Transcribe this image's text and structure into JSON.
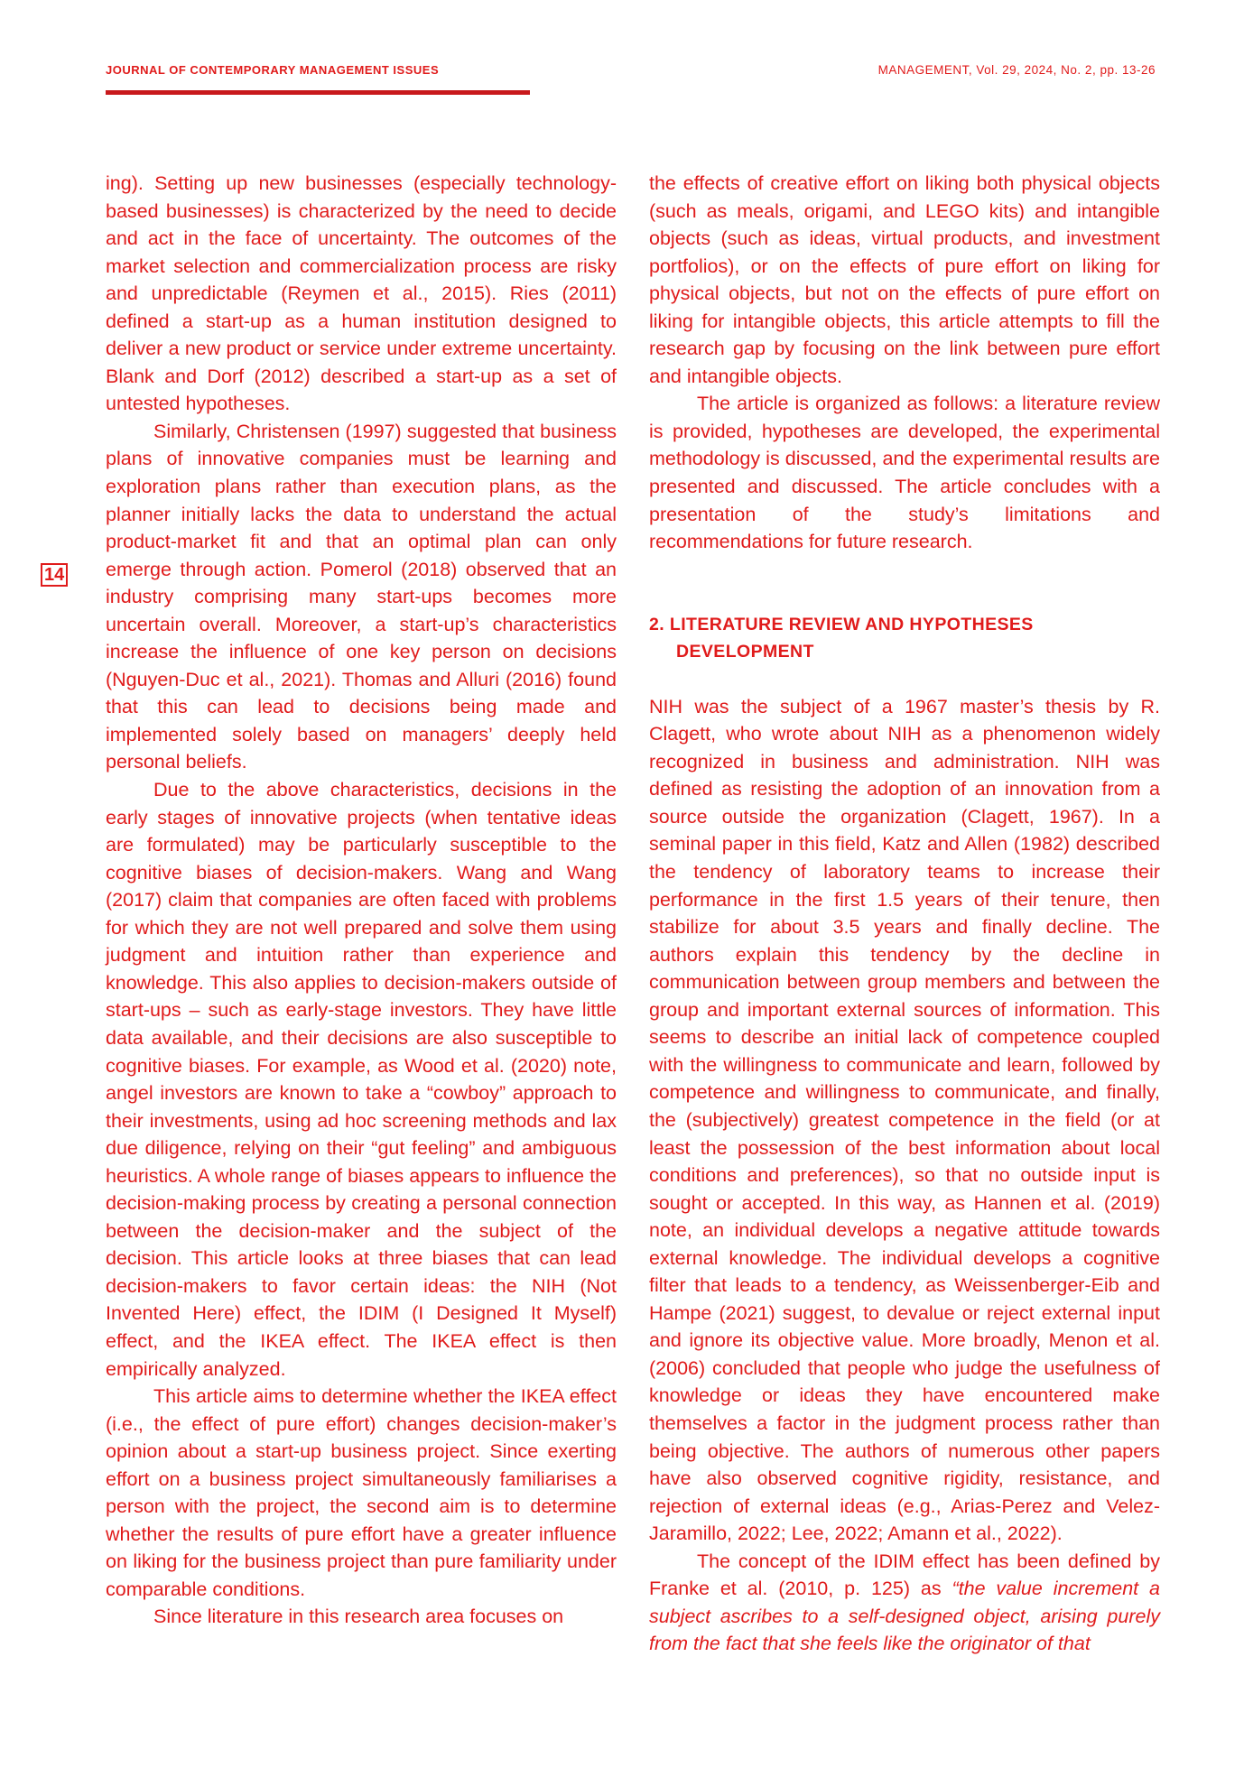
{
  "header": {
    "journal_title": "JOURNAL OF CONTEMPORARY MANAGEMENT ISSUES",
    "citation": "MANAGEMENT, Vol. 29, 2024, No. 2, pp. 13-26"
  },
  "page_number": "14",
  "left_column": {
    "p1": "ing). Setting up new businesses (especially technology-based businesses) is characterized by the need to decide and act in the face of uncertainty. The outcomes of the market selection and commercialization process are risky and unpredictable (Reymen et al., 2015). Ries (2011) defined a start-up as a human institution designed to deliver a new product or service under extreme uncertainty. Blank and Dorf (2012) described a start-up as a set of untested hypotheses.",
    "p2": "Similarly, Christensen (1997) suggested that business plans of innovative companies must be learning and exploration plans rather than execution plans, as the planner initially lacks the data to understand the actual product-market fit and that an optimal plan can only emerge through action. Pomerol (2018) observed that an industry comprising many start-ups becomes more uncertain overall. Moreover, a start-up’s characteristics increase the influence of one key person on decisions (Nguyen-Duc et al., 2021). Thomas and Alluri (2016) found that this can lead to decisions being made and implemented solely based on managers’ deeply held personal beliefs.",
    "p3": "Due to the above characteristics, decisions in the early stages of innovative projects (when tentative ideas are formulated) may be particularly susceptible to the cognitive biases of decision-makers. Wang and Wang (2017) claim that companies are often faced with problems for which they are not well prepared and solve them using judgment and intuition rather than experience and knowledge. This also applies to decision-makers outside of start-ups – such as early-stage investors. They have little data available, and their decisions are also susceptible to cognitive biases. For example, as Wood et al. (2020) note, angel investors are known to take a “cowboy” approach to their investments, using ad hoc screening methods and lax due diligence, relying on their “gut feeling” and ambiguous heuristics. A whole range of biases appears to influence the decision-making process by creating a personal connection between the decision-maker and the subject of the decision. This article looks at three biases that can lead decision-makers to favor certain ideas: the NIH (Not Invented Here) effect, the IDIM (I Designed It Myself) effect, and the IKEA effect. The IKEA effect is then empirically analyzed.",
    "p4": "This article aims to determine whether the IKEA effect (i.e., the effect of pure effort) changes decision-maker’s opinion about a start-up business project. Since exerting effort on a business project simultaneously familiarises a person with the project, the second aim is to determine whether the results of pure effort have a greater influence on liking for the business project than pure familiarity under comparable conditions.",
    "p5": "Since literature in this research area focuses on"
  },
  "right_column": {
    "p1": "the effects of creative effort on liking both physical objects (such as meals, origami, and LEGO kits) and intangible objects (such as ideas, virtual products, and investment portfolios), or on the effects of pure effort on liking for physical objects, but not on the effects of pure effort on liking for intangible objects, this article attempts to fill the research gap by focusing on the link between pure effort and intangible objects.",
    "p2": "The article is organized as follows: a literature review is provided, hypotheses are developed, the experimental methodology is discussed, and the experimental results are presented and discussed. The article concludes with a presentation of the study’s limitations and recommendations for future research.",
    "heading": "2. LITERATURE REVIEW AND HYPOTHESES DEVELOPMENT",
    "p3": "NIH was the subject of a 1967 master’s thesis by R. Clagett, who wrote about NIH as a phenomenon widely recognized in business and administration. NIH was defined as resisting the adoption of an innovation from a source outside the organization (Clagett, 1967). In a seminal paper in this field, Katz and Allen (1982) described the tendency of laboratory teams to increase their performance in the first 1.5 years of their tenure, then stabilize for about 3.5 years and finally decline. The authors explain this tendency by the decline in communication between group members and between the group and important external sources of information. This seems to describe an initial lack of competence coupled with the willingness to communicate and learn, followed by competence and willingness to communicate, and finally, the (subjectively) greatest competence in the field (or at least the possession of the best information about local conditions and preferences), so that no outside input is sought or accepted. In this way, as Hannen et al. (2019) note, an individual develops a negative attitude towards external knowledge. The individual develops a cognitive filter that leads to a tendency, as Weissenberger-Eib and Hampe (2021) suggest, to devalue or reject external input and ignore its objective value. More broadly, Menon et al. (2006) concluded that people who judge the usefulness of knowledge or ideas they have encountered make themselves a factor in the judgment process rather than being objective. The authors of numerous other papers have also observed cognitive rigidity, resistance, and rejection of external ideas (e.g., Arias-Perez and Velez-Jaramillo, 2022; Lee, 2022; Amann et al., 2022).",
    "p4_lead": "The concept of the IDIM effect has been defined by Franke et al. (2010, p. 125) as ",
    "p4_quote": "“the value increment a subject ascribes to a self-designed object, arising purely from the fact that she feels like the originator of that"
  }
}
